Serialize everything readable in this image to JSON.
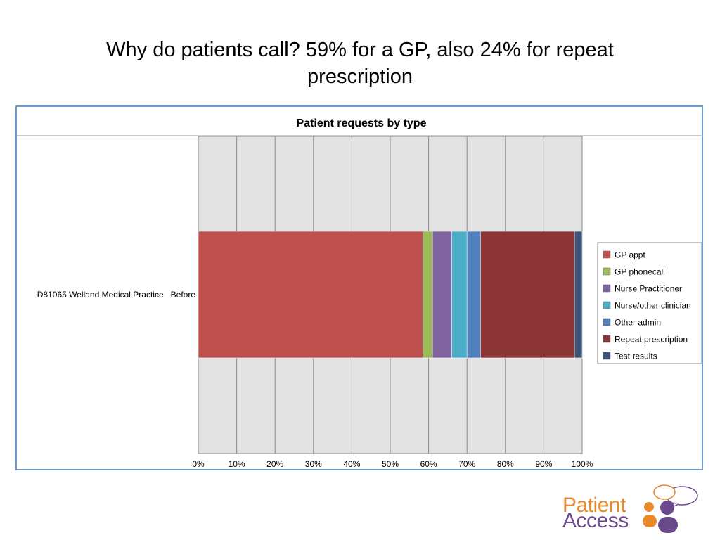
{
  "slide": {
    "title_line1": "Why do patients call?  59% for a GP, also 24% for repeat",
    "title_line2": "prescription"
  },
  "chart_data": {
    "type": "bar",
    "orientation": "horizontal-stacked-100",
    "title": "Patient requests by type",
    "categories": [
      "D81065 Welland Medical Practice   Before"
    ],
    "series": [
      {
        "name": "GP appt",
        "values": [
          58.5
        ],
        "color": "#c0504d"
      },
      {
        "name": "GP phonecall",
        "values": [
          2.5
        ],
        "color": "#9bbb59"
      },
      {
        "name": "Nurse Practitioner",
        "values": [
          5
        ],
        "color": "#8064a2"
      },
      {
        "name": "Nurse/other clinician",
        "values": [
          4
        ],
        "color": "#4bacc6"
      },
      {
        "name": "Other admin",
        "values": [
          3.5
        ],
        "color": "#4f81bd"
      },
      {
        "name": "Repeat prescription",
        "values": [
          24.5
        ],
        "color": "#8b3537"
      },
      {
        "name": "Test results",
        "values": [
          2
        ],
        "color": "#3d5478"
      }
    ],
    "xlim": [
      0,
      100
    ],
    "xticks": [
      "0%",
      "10%",
      "20%",
      "30%",
      "40%",
      "50%",
      "60%",
      "70%",
      "80%",
      "90%",
      "100%"
    ],
    "grid": true,
    "legend_position": "right"
  },
  "logo": {
    "line1": "Patient",
    "line2": "Access",
    "color_orange": "#e8892b",
    "color_purple": "#6b4a8c"
  }
}
